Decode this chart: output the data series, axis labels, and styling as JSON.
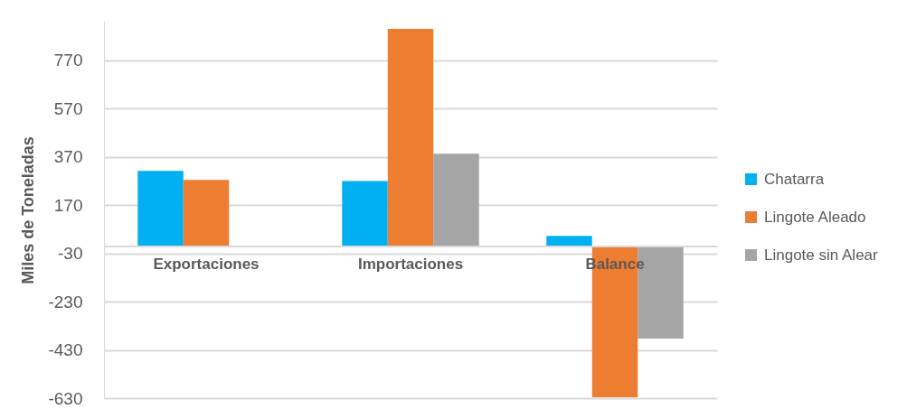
{
  "chart_data": {
    "type": "bar",
    "ylabel": "Miles de Toneladas",
    "categories": [
      "Exportaciones",
      "Importaciones",
      "Balance"
    ],
    "series": [
      {
        "name": "Chatarra",
        "color": "#00b0f0",
        "values": [
          312,
          270,
          42
        ]
      },
      {
        "name": "Lingote Aleado",
        "color": "#ed7d31",
        "values": [
          274,
          900,
          -626
        ]
      },
      {
        "name": "Lingote sin Alear",
        "color": "#a5a5a5",
        "values": [
          null,
          383,
          -383
        ]
      }
    ],
    "ylim": [
      -630,
      930
    ],
    "yticks": [
      -630,
      -430,
      -230,
      -30,
      170,
      370,
      570,
      770
    ],
    "grid": "y",
    "legend": "right"
  }
}
